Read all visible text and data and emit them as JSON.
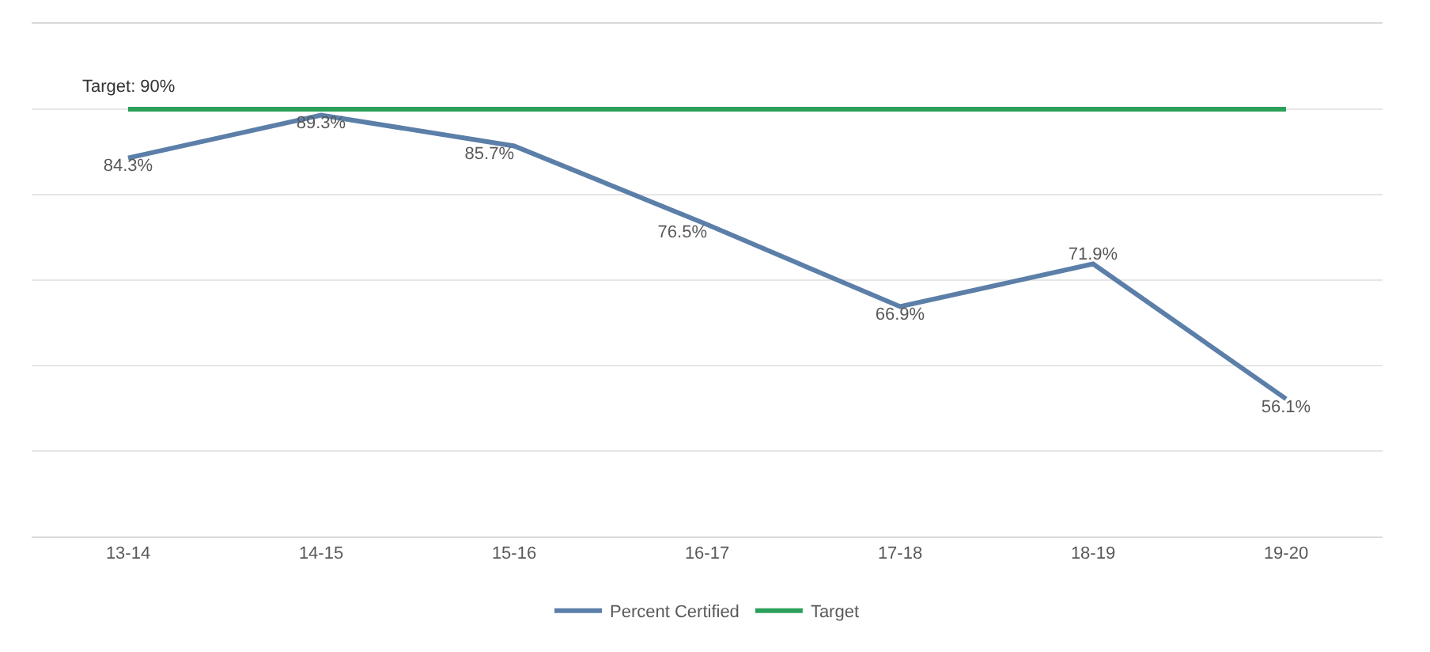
{
  "chart_data": {
    "type": "line",
    "categories": [
      "13-14",
      "14-15",
      "15-16",
      "16-17",
      "17-18",
      "18-19",
      "19-20"
    ],
    "series": [
      {
        "name": "Percent Certified",
        "color": "#5b7fa8",
        "values": [
          84.3,
          89.3,
          85.7,
          76.5,
          66.9,
          71.9,
          56.1
        ],
        "value_labels": [
          "84.3%",
          "89.3%",
          "85.7%",
          "76.5%",
          "66.9%",
          "71.9%",
          "56.1%"
        ]
      },
      {
        "name": "Target",
        "color": "#2ca05a",
        "values": [
          90,
          90,
          90,
          90,
          90,
          90,
          90
        ]
      }
    ],
    "annotations": [
      {
        "text": "Target: 90%",
        "x": "13-14",
        "y": 90
      }
    ],
    "ylim": [
      40,
      100
    ],
    "yticks": [
      {
        "value": 40,
        "label": null
      },
      {
        "value": 50,
        "label": null
      },
      {
        "value": 60,
        "label": null
      },
      {
        "value": 70,
        "label": null
      },
      {
        "value": 80,
        "label": null
      },
      {
        "value": 90,
        "label": null
      }
    ],
    "tick_labels": "x",
    "grid": "y",
    "legend": "bottom",
    "marker": "none",
    "line_style": "solid"
  }
}
